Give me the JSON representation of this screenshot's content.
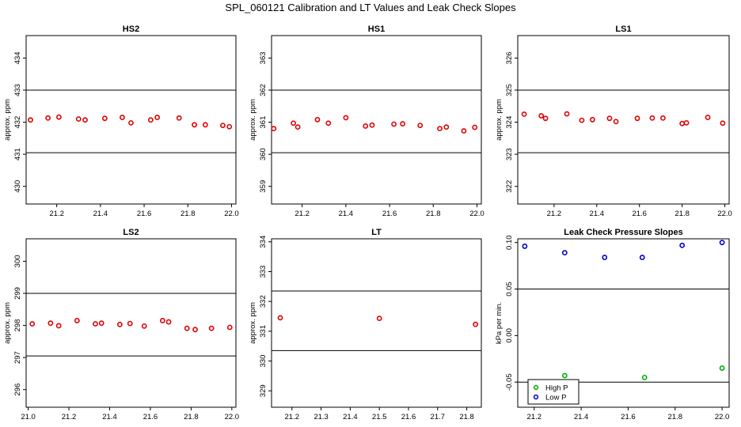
{
  "title": "SPL_060121  Calibration and LT Values and Leak Check Slopes",
  "colors": {
    "red": "#e00000",
    "blue": "#0000cc",
    "green": "#00b000",
    "line": "#000000"
  },
  "chart_data": [
    {
      "type": "scatter",
      "title": "HS2",
      "ylabel": "approx. ppm",
      "xlabel": "",
      "xlim": [
        21.06,
        22.02
      ],
      "ylim": [
        429.45,
        434.7
      ],
      "xticks": [
        21.2,
        21.4,
        21.6,
        21.8,
        22.0
      ],
      "yticks": [
        430,
        431,
        432,
        433,
        434
      ],
      "hlines": [
        431.05,
        433.0
      ],
      "series": [
        {
          "color": "red",
          "marker": "circle",
          "x": [
            21.08,
            21.16,
            21.21,
            21.3,
            21.33,
            21.42,
            21.5,
            21.54,
            21.63,
            21.66,
            21.76,
            21.83,
            21.88,
            21.96,
            21.99
          ],
          "y": [
            432.07,
            432.13,
            432.16,
            432.1,
            432.07,
            432.12,
            432.15,
            431.98,
            432.07,
            432.15,
            432.13,
            431.92,
            431.92,
            431.9,
            431.86
          ]
        }
      ]
    },
    {
      "type": "scatter",
      "title": "HS1",
      "ylabel": "approx. ppm",
      "xlabel": "",
      "xlim": [
        21.06,
        22.02
      ],
      "ylim": [
        358.45,
        363.7
      ],
      "xticks": [
        21.2,
        21.4,
        21.6,
        21.8,
        22.0
      ],
      "yticks": [
        359,
        360,
        361,
        362,
        363
      ],
      "hlines": [
        360.05,
        362.0
      ],
      "series": [
        {
          "color": "red",
          "marker": "circle",
          "x": [
            21.07,
            21.16,
            21.18,
            21.27,
            21.32,
            21.4,
            21.49,
            21.52,
            21.62,
            21.66,
            21.74,
            21.83,
            21.86,
            21.94,
            21.99
          ],
          "y": [
            360.8,
            360.97,
            360.85,
            361.08,
            360.97,
            361.14,
            360.88,
            360.91,
            360.94,
            360.95,
            360.9,
            360.8,
            360.85,
            360.73,
            360.84
          ]
        }
      ]
    },
    {
      "type": "scatter",
      "title": "LS1",
      "ylabel": "approx. ppm",
      "xlabel": "",
      "xlim": [
        21.03,
        22.02
      ],
      "ylim": [
        321.45,
        326.7
      ],
      "xticks": [
        21.2,
        21.4,
        21.6,
        21.8,
        22.0
      ],
      "yticks": [
        322,
        323,
        324,
        325,
        326
      ],
      "hlines": [
        323.05,
        325.0
      ],
      "series": [
        {
          "color": "red",
          "marker": "circle",
          "x": [
            21.06,
            21.14,
            21.16,
            21.26,
            21.33,
            21.38,
            21.46,
            21.49,
            21.59,
            21.66,
            21.71,
            21.8,
            21.82,
            21.92,
            21.99
          ],
          "y": [
            324.25,
            324.2,
            324.12,
            324.26,
            324.06,
            324.08,
            324.12,
            324.02,
            324.12,
            324.13,
            324.13,
            323.96,
            323.98,
            324.15,
            323.97
          ]
        }
      ]
    },
    {
      "type": "scatter",
      "title": "LS2",
      "ylabel": "approx. ppm",
      "xlabel": "",
      "xlim": [
        20.99,
        22.02
      ],
      "ylim": [
        295.45,
        300.7
      ],
      "xticks": [
        21.0,
        21.2,
        21.4,
        21.6,
        21.8,
        22.0
      ],
      "yticks": [
        296,
        297,
        298,
        299,
        300
      ],
      "hlines": [
        297.05,
        299.0
      ],
      "series": [
        {
          "color": "red",
          "marker": "circle",
          "x": [
            21.02,
            21.11,
            21.15,
            21.24,
            21.33,
            21.36,
            21.45,
            21.5,
            21.57,
            21.66,
            21.69,
            21.78,
            21.82,
            21.9,
            21.99
          ],
          "y": [
            298.05,
            298.07,
            297.99,
            298.15,
            298.05,
            298.07,
            298.03,
            298.06,
            297.98,
            298.15,
            298.11,
            297.91,
            297.87,
            297.91,
            297.94
          ]
        }
      ]
    },
    {
      "type": "scatter",
      "title": "LT",
      "ylabel": "approx. ppm",
      "xlabel": "",
      "xlim": [
        21.13,
        21.85
      ],
      "ylim": [
        328.45,
        334.1
      ],
      "xticks": [
        21.2,
        21.3,
        21.4,
        21.5,
        21.6,
        21.7,
        21.8
      ],
      "yticks": [
        329,
        330,
        331,
        332,
        333,
        334
      ],
      "hlines": [
        330.35,
        332.35
      ],
      "series": [
        {
          "color": "red",
          "marker": "circle",
          "x": [
            21.16,
            21.5,
            21.83
          ],
          "y": [
            331.45,
            331.43,
            331.23
          ]
        }
      ]
    },
    {
      "type": "scatter",
      "title": "Leak Check Pressure Slopes",
      "ylabel": "kPa per min.",
      "xlabel": "",
      "xlim": [
        21.13,
        22.03
      ],
      "ylim": [
        -0.077,
        0.104
      ],
      "xticks": [
        21.2,
        21.4,
        21.6,
        21.8,
        22.0
      ],
      "yticks": [
        -0.05,
        0.0,
        0.05,
        0.1
      ],
      "yticklabels": [
        "-0.05",
        "0.00",
        "0.05",
        "0.10"
      ],
      "hlines": [
        -0.05,
        0.05
      ],
      "legend": {
        "position": "bottom-left",
        "entries": [
          "High P",
          "Low P"
        ]
      },
      "series": [
        {
          "name": "High P",
          "color": "green",
          "marker": "circle",
          "x": [
            21.33,
            21.67,
            22.0
          ],
          "y": [
            -0.043,
            -0.045,
            -0.035
          ]
        },
        {
          "name": "Low P",
          "color": "blue",
          "marker": "circle",
          "x": [
            21.16,
            21.33,
            21.5,
            21.66,
            21.83,
            22.0
          ],
          "y": [
            0.096,
            0.089,
            0.084,
            0.084,
            0.097,
            0.1
          ]
        }
      ]
    }
  ]
}
